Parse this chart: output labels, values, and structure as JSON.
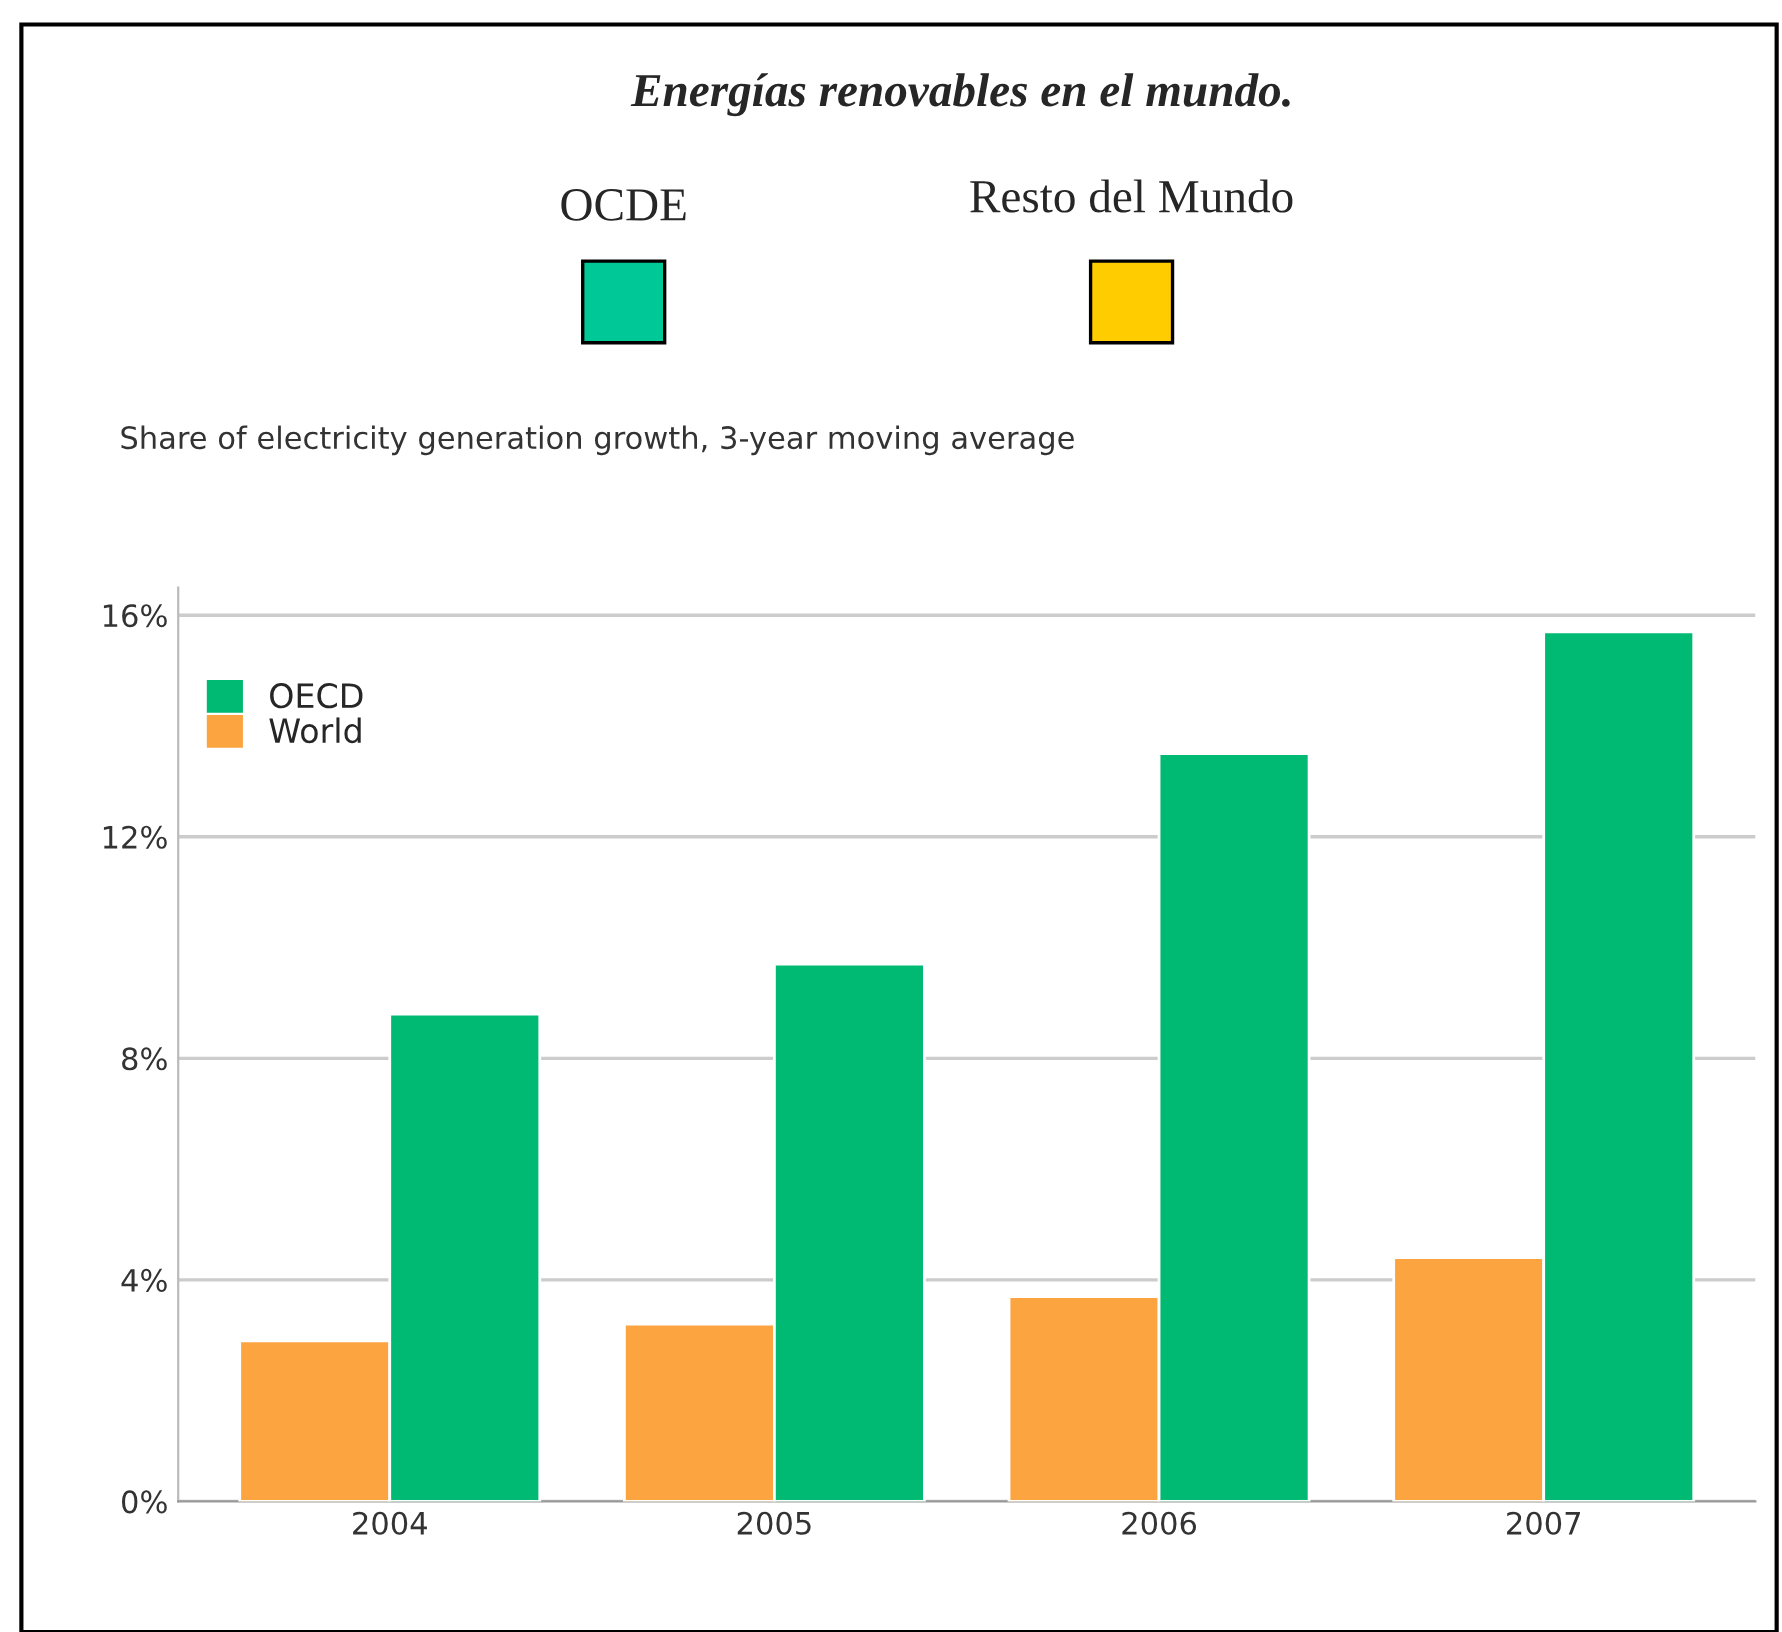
{
  "chart_data": {
    "type": "bar",
    "title": "Energías renovables en el mundo.",
    "subtitle": "Share of electricity generation growth, 3-year moving average",
    "categories": [
      "2004",
      "2005",
      "2006",
      "2007"
    ],
    "series": [
      {
        "name": "World",
        "color": "#fba440",
        "values": [
          2.9,
          3.2,
          3.7,
          4.4
        ]
      },
      {
        "name": "OECD",
        "color": "#00b972",
        "values": [
          8.8,
          9.7,
          13.5,
          15.7
        ]
      }
    ],
    "ylim": [
      0,
      16.5
    ],
    "yticks": [
      {
        "value": 0,
        "label": "0%"
      },
      {
        "value": 4,
        "label": "4%"
      },
      {
        "value": 8,
        "label": "8%"
      },
      {
        "value": 12,
        "label": "12%"
      },
      {
        "value": 16,
        "label": "16%"
      }
    ],
    "grid": "y",
    "legend": "top left",
    "annotations": [
      "OCDE",
      "Resto del Mundo"
    ]
  }
}
